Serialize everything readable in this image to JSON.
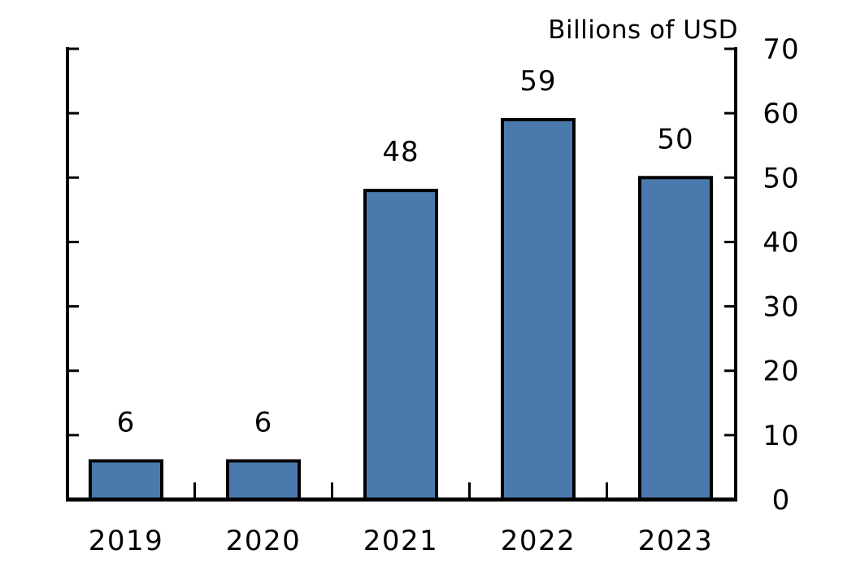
{
  "chart_data": {
    "type": "bar",
    "title": "Billions of USD",
    "title_position": "top-right",
    "categories": [
      "2019",
      "2020",
      "2021",
      "2022",
      "2023"
    ],
    "values": [
      6,
      6,
      48,
      59,
      50
    ],
    "data_labels": [
      "6",
      "6",
      "48",
      "59",
      "50"
    ],
    "xlabel": "",
    "ylabel": "Billions of USD",
    "ylim": [
      0,
      70
    ],
    "yticks": [
      0,
      10,
      20,
      30,
      40,
      50,
      60,
      70
    ],
    "ytick_side": "right",
    "tick_style": "inward",
    "grid": false,
    "legend": "none",
    "colors": {
      "bar_fill": "#4A7AAD",
      "bar_stroke": "#000000",
      "axis": "#000000",
      "text": "#000000",
      "background": "#FFFFFF"
    }
  }
}
